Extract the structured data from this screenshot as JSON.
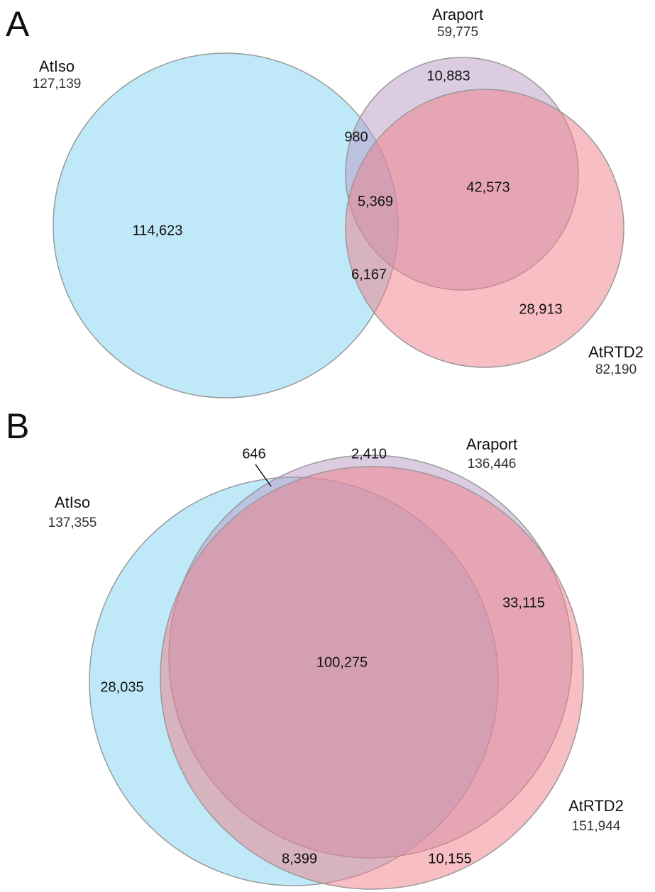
{
  "panels": [
    {
      "label": "A",
      "sets": [
        {
          "name": "AtIso",
          "size": "127,139"
        },
        {
          "name": "Araport",
          "size": "59,775"
        },
        {
          "name": "AtRTD2",
          "size": "82,190"
        }
      ],
      "regions": [
        "114,623",
        "10,883",
        "980",
        "5,369",
        "42,573",
        "6,167",
        "28,913"
      ]
    },
    {
      "label": "B",
      "sets": [
        {
          "name": "AtIso",
          "size": "137,355"
        },
        {
          "name": "Araport",
          "size": "136,446"
        },
        {
          "name": "AtRTD2",
          "size": "151,944"
        }
      ],
      "regions": [
        "646",
        "2,410",
        "33,115",
        "100,275",
        "28,035",
        "8,399",
        "10,155"
      ]
    }
  ]
}
